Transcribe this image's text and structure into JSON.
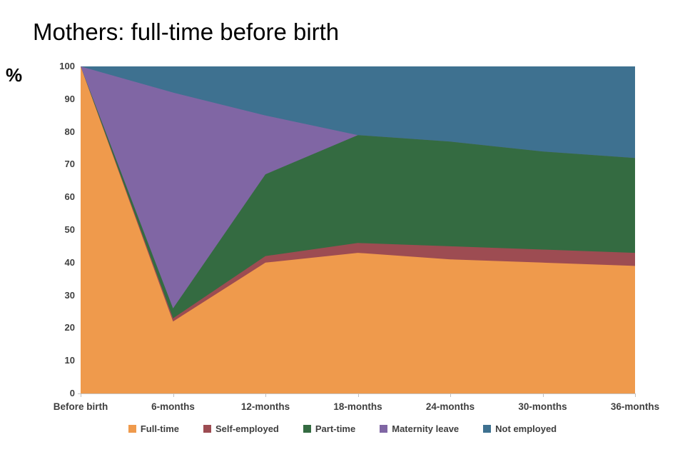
{
  "title": "Mothers: full-time before birth",
  "y_axis_unit_label": "%",
  "chart_data": {
    "type": "area",
    "stacked": true,
    "title": "Mothers: full-time before birth",
    "xlabel": "",
    "ylabel": "%",
    "ylim": [
      0,
      100
    ],
    "y_ticks": [
      0,
      10,
      20,
      30,
      40,
      50,
      60,
      70,
      80,
      90,
      100
    ],
    "grid": false,
    "legend_position": "bottom",
    "categories": [
      "Before birth",
      "6-months",
      "12-months",
      "18-months",
      "24-months",
      "30-months",
      "36-months"
    ],
    "series": [
      {
        "name": "Full-time",
        "color": "#EF9A4C",
        "values": [
          100,
          22,
          40,
          43,
          41,
          40,
          39
        ]
      },
      {
        "name": "Self-employed",
        "color": "#9D4C52",
        "values": [
          0,
          1,
          2,
          3,
          4,
          4,
          4
        ]
      },
      {
        "name": "Part-time",
        "color": "#346B41",
        "values": [
          0,
          3,
          25,
          33,
          32,
          30,
          29
        ]
      },
      {
        "name": "Maternity leave",
        "color": "#8066A4",
        "values": [
          0,
          66,
          18,
          0,
          0,
          0,
          0
        ]
      },
      {
        "name": "Not employed",
        "color": "#3E7190",
        "values": [
          0,
          8,
          15,
          21,
          23,
          26,
          28
        ]
      }
    ]
  }
}
